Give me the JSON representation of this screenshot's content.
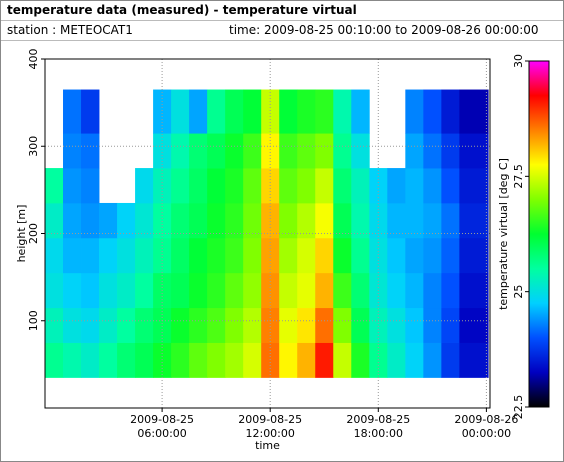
{
  "header": {
    "title": "temperature data (measured) - temperature virtual",
    "station": "station : METEOCAT1",
    "time": "time: 2009-08-25 00:10:00 to 2009-08-26 00:00:00"
  },
  "chart_data": {
    "type": "heatmap",
    "xlabel": "time",
    "ylabel": "height [m]",
    "xlim": [
      -0.5,
      24.2
    ],
    "xticks": [
      {
        "value": 6,
        "label": "2009-08-25 06:00:00"
      },
      {
        "value": 12,
        "label": "2009-08-25 12:00:00"
      },
      {
        "value": 18,
        "label": "2009-08-25 18:00:00"
      },
      {
        "value": 24,
        "label": "2009-08-26 00:00:00"
      }
    ],
    "ylim": [
      0,
      400
    ],
    "yticks": [
      100,
      200,
      300,
      400
    ],
    "grid": true,
    "x_bins": [
      -0.5,
      0.5,
      1.5,
      2.5,
      3.5,
      4.5,
      5.5,
      6.5,
      7.5,
      8.5,
      9.5,
      10.5,
      11.5,
      12.5,
      13.5,
      14.5,
      15.5,
      16.5,
      17.5,
      18.5,
      19.5,
      20.5,
      21.5,
      22.5,
      24.1
    ],
    "y_bins": [
      35,
      75,
      115,
      155,
      195,
      235,
      275,
      315,
      365
    ],
    "values": [
      [
        25.6,
        25.4,
        25.2,
        25.5,
        25.8,
        26.0,
        26.3,
        26.5,
        26.8,
        27.0,
        27.2,
        27.5,
        28.6,
        27.8,
        28.2,
        29.1,
        27.4,
        26.4,
        25.6,
        25.2,
        24.8,
        24.4,
        23.8,
        23.4
      ],
      [
        25.3,
        25.0,
        24.9,
        25.2,
        25.5,
        25.8,
        26.0,
        26.3,
        26.5,
        26.7,
        27.0,
        27.3,
        28.5,
        27.6,
        27.9,
        28.6,
        27.0,
        26.0,
        25.3,
        25.0,
        24.7,
        24.3,
        23.9,
        23.3
      ],
      [
        25.0,
        24.8,
        24.7,
        25.0,
        25.2,
        25.5,
        25.9,
        26.0,
        26.3,
        26.5,
        26.8,
        27.1,
        28.4,
        27.4,
        27.6,
        28.2,
        26.6,
        25.8,
        25.1,
        24.8,
        24.6,
        24.3,
        24.0,
        23.4
      ],
      [
        24.9,
        24.6,
        24.6,
        24.8,
        25.0,
        25.3,
        25.6,
        25.9,
        26.2,
        26.4,
        26.6,
        27.0,
        28.3,
        27.2,
        27.5,
        28.0,
        26.3,
        25.6,
        25.0,
        24.7,
        24.5,
        24.4,
        24.1,
        23.5
      ],
      [
        25.2,
        24.5,
        24.4,
        24.5,
        24.8,
        25.1,
        25.5,
        25.8,
        26.0,
        26.3,
        26.5,
        26.9,
        28.2,
        27.0,
        27.3,
        27.7,
        26.0,
        25.4,
        24.9,
        24.6,
        24.6,
        24.5,
        24.2,
        23.6
      ],
      [
        25.5,
        24.4,
        24.3,
        null,
        null,
        24.9,
        25.3,
        25.6,
        25.9,
        26.2,
        26.4,
        26.8,
        28.0,
        26.8,
        27.0,
        27.4,
        25.8,
        25.3,
        24.8,
        24.5,
        24.6,
        24.4,
        24.0,
        23.5
      ],
      [
        null,
        24.3,
        24.2,
        null,
        null,
        null,
        25.0,
        25.4,
        25.8,
        26.0,
        26.3,
        26.6,
        27.8,
        26.6,
        26.8,
        27.0,
        25.6,
        25.0,
        null,
        null,
        24.5,
        24.2,
        23.8,
        23.4
      ],
      [
        null,
        24.2,
        23.8,
        null,
        null,
        null,
        24.6,
        25.0,
        24.5,
        25.6,
        26.0,
        26.2,
        27.4,
        26.2,
        26.4,
        26.5,
        25.4,
        24.6,
        null,
        null,
        24.3,
        24.0,
        23.5,
        23.2
      ]
    ],
    "colorbar": {
      "label": "temperature virtual [deg C]",
      "lim": [
        22.5,
        30
      ],
      "ticks": [
        22.5,
        25,
        27.5,
        30
      ],
      "colors": [
        "#000000",
        "#0000c0",
        "#0050ff",
        "#00d0ff",
        "#00ffa0",
        "#00ff30",
        "#80ff00",
        "#ffff00",
        "#ff8000",
        "#ff0000",
        "#ff00ff"
      ]
    }
  }
}
